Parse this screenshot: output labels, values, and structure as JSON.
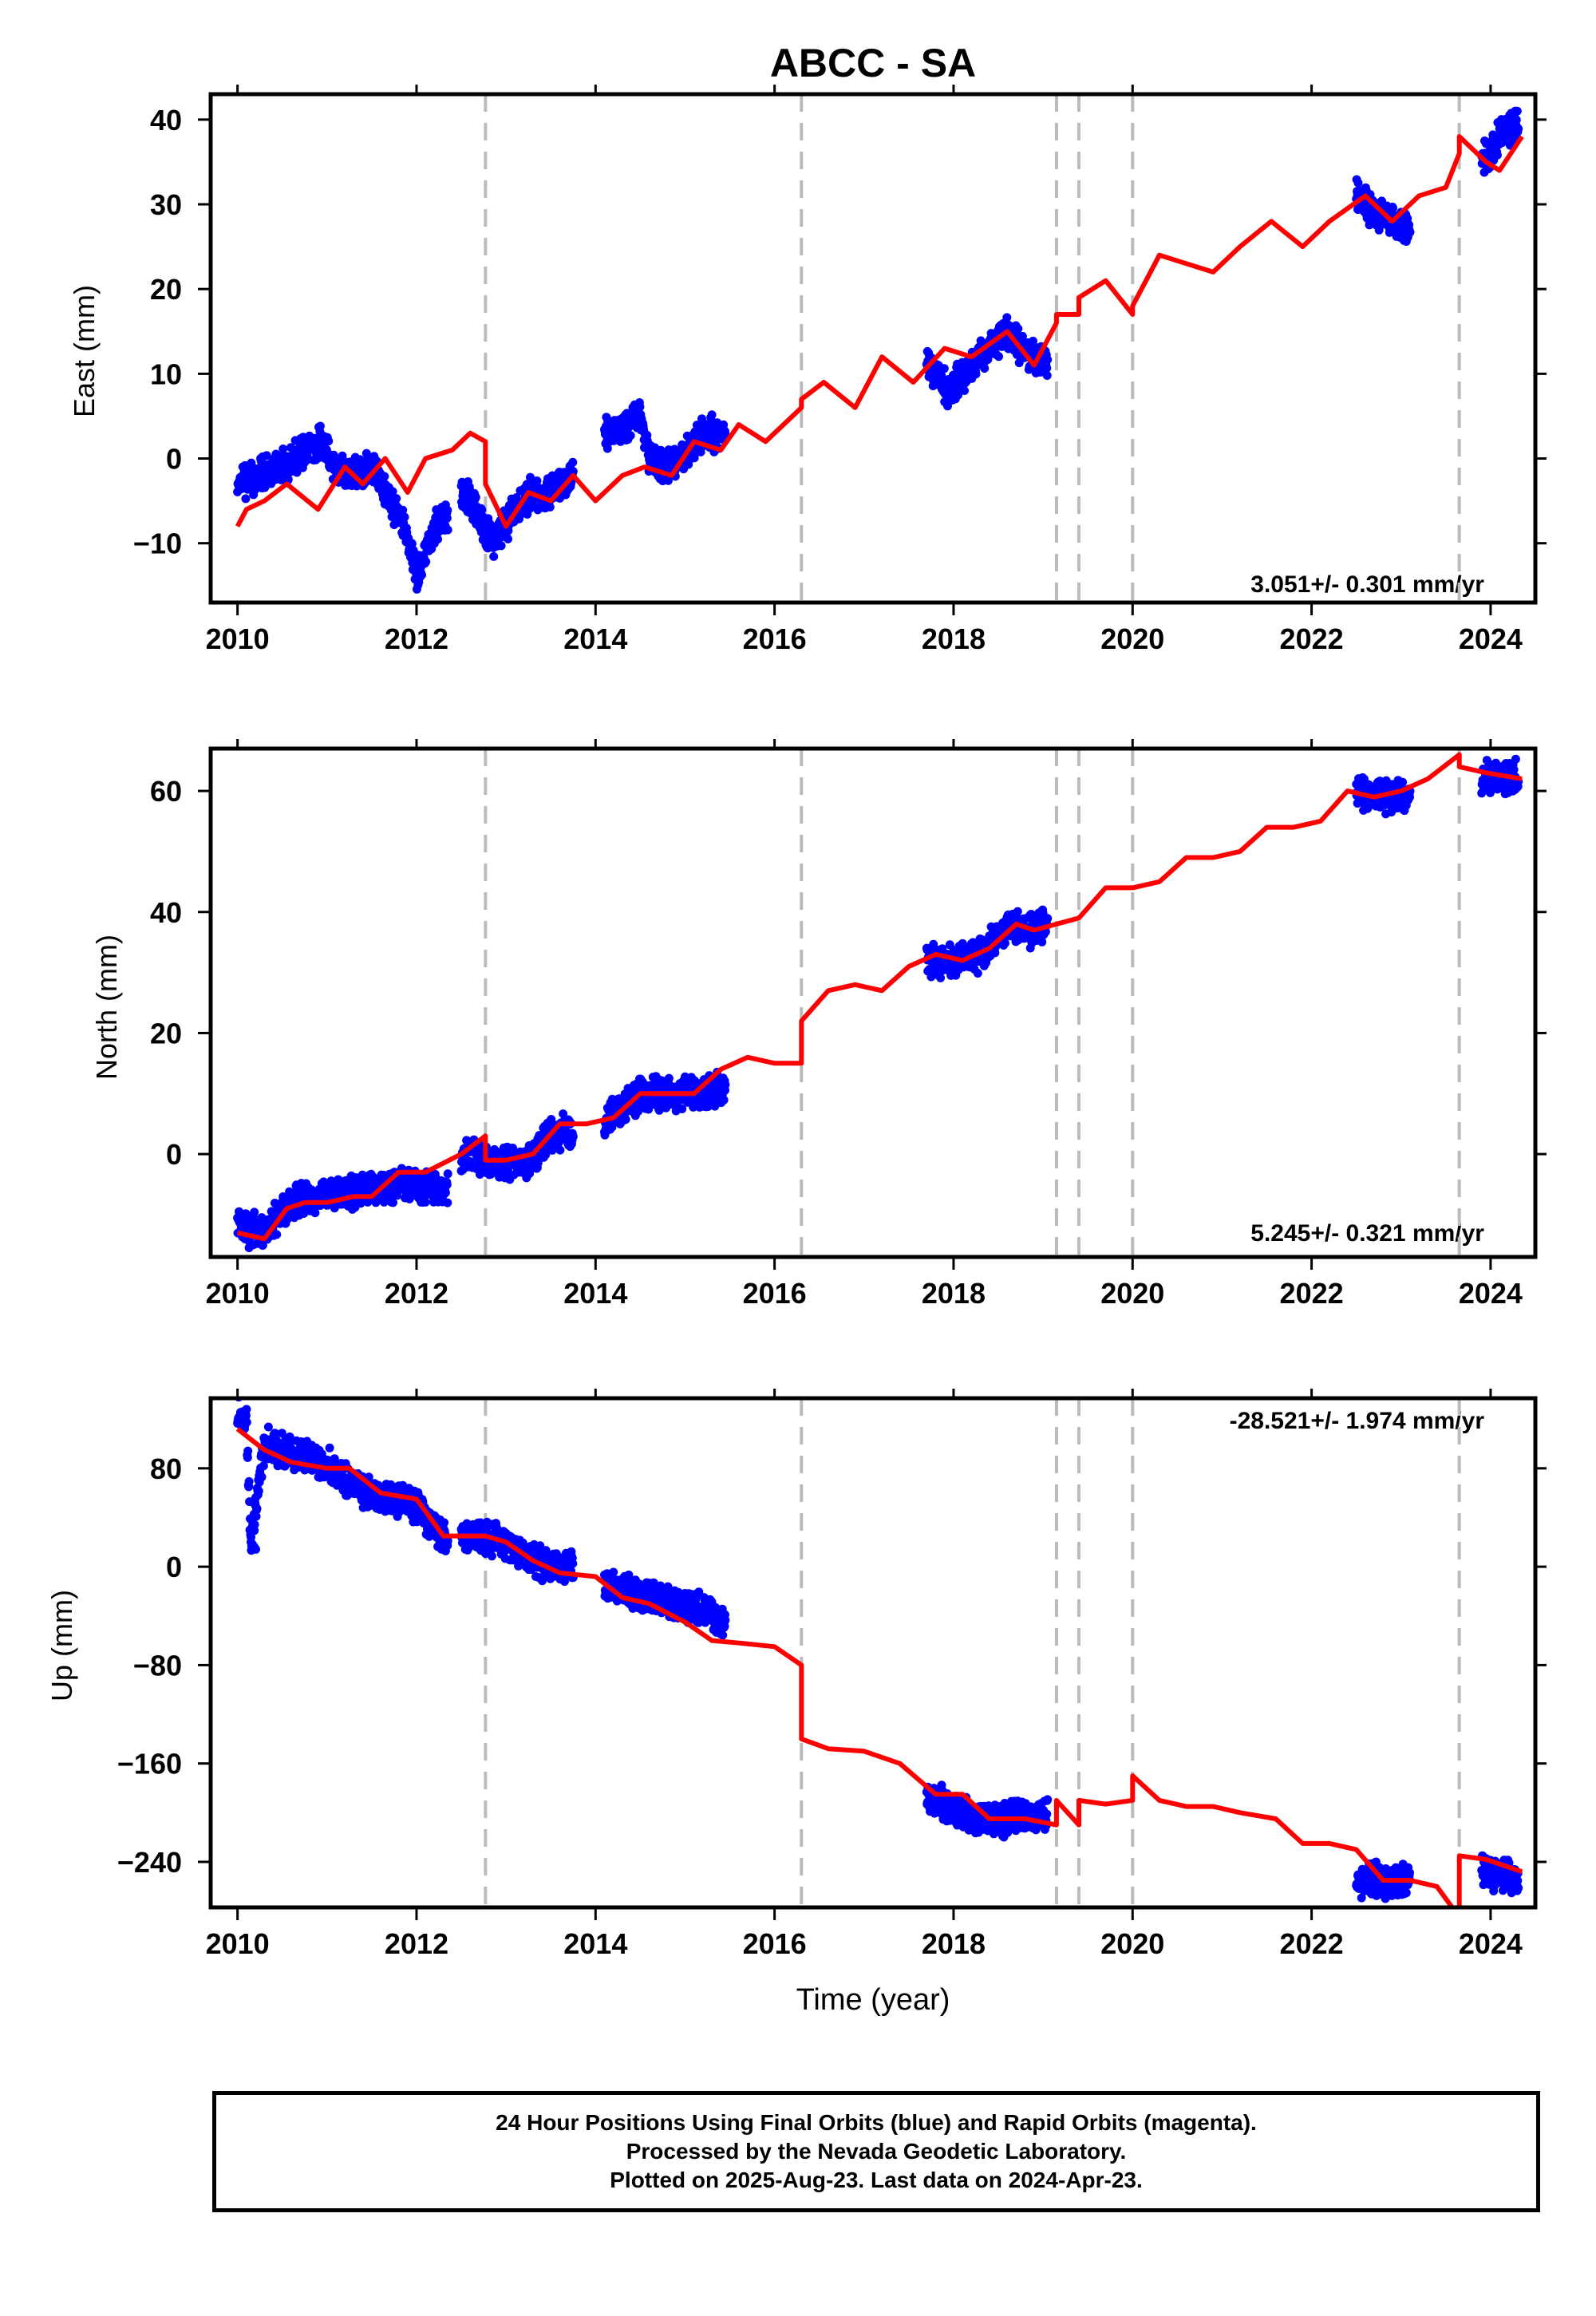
{
  "title": "ABCC - SA",
  "colors": {
    "data_points": "#0000ff",
    "model_line": "#ff0000",
    "event_lines": "#bbbbbb",
    "frame": "#000000"
  },
  "x_axis": {
    "label": "Time (year)",
    "range": [
      2009.7,
      2024.5
    ],
    "ticks": [
      2010,
      2012,
      2014,
      2016,
      2018,
      2020,
      2022,
      2024
    ],
    "tick_labels": [
      "2010",
      "2012",
      "2014",
      "2016",
      "2018",
      "2020",
      "2022",
      "2024"
    ]
  },
  "event_lines": [
    2012.77,
    2016.3,
    2019.15,
    2019.4,
    2020.0,
    2023.65
  ],
  "data_segments": [
    [
      2010.0,
      2012.35
    ],
    [
      2012.5,
      2013.75
    ],
    [
      2014.1,
      2015.45
    ],
    [
      2017.7,
      2019.05
    ],
    [
      2022.5,
      2023.1
    ],
    [
      2023.9,
      2024.31
    ]
  ],
  "chart_data": [
    {
      "type": "scatter",
      "ylabel": "East (mm)",
      "ylim": [
        -17,
        43
      ],
      "yticks": [
        -10,
        0,
        10,
        20,
        30,
        40
      ],
      "ytick_labels": [
        "−10",
        "0",
        "10",
        "20",
        "30",
        "40"
      ],
      "rate_label": "3.051+/- 0.301 mm/yr",
      "rate_position": "bottom-right",
      "series": [
        {
          "role": "daily_positions",
          "x": [
            2010.0,
            2010.5,
            2010.9,
            2011.2,
            2011.5,
            2011.7,
            2011.9,
            2012.0,
            2012.25,
            2012.55,
            2012.85,
            2013.05,
            2013.3,
            2013.5,
            2013.75,
            2014.1,
            2014.5,
            2014.6,
            2014.85,
            2015.2,
            2015.45,
            2017.7,
            2017.95,
            2018.3,
            2018.6,
            2018.85,
            2019.05,
            2022.5,
            2022.7,
            2022.9,
            2023.1,
            2023.9,
            2024.1,
            2024.31
          ],
          "y": [
            -3,
            -1,
            2,
            -2,
            -1,
            -5,
            -9,
            -14,
            -7,
            -4,
            -10,
            -7,
            -4,
            -4,
            -2,
            3,
            5,
            0,
            -1,
            3,
            3,
            11,
            8,
            12,
            15,
            12,
            11,
            31,
            29,
            28,
            27,
            35,
            38,
            40
          ]
        },
        {
          "role": "model",
          "x": [
            2010.0,
            2010.1,
            2010.3,
            2010.55,
            2010.9,
            2011.2,
            2011.4,
            2011.65,
            2011.9,
            2012.1,
            2012.4,
            2012.6,
            2012.77,
            2012.77,
            2013.0,
            2013.25,
            2013.5,
            2013.75,
            2014.0,
            2014.3,
            2014.55,
            2014.85,
            2015.1,
            2015.4,
            2015.6,
            2015.9,
            2016.3,
            2016.3,
            2016.55,
            2016.9,
            2017.2,
            2017.55,
            2017.9,
            2018.2,
            2018.6,
            2018.9,
            2019.15,
            2019.15,
            2019.4,
            2019.4,
            2019.7,
            2020.0,
            2020.0,
            2020.3,
            2020.6,
            2020.9,
            2021.2,
            2021.55,
            2021.9,
            2022.2,
            2022.6,
            2022.9,
            2023.2,
            2023.5,
            2023.65,
            2023.65,
            2023.95,
            2024.1,
            2024.35
          ],
          "y": [
            -8,
            -6,
            -5,
            -3,
            -6,
            -1,
            -3,
            0,
            -4,
            0,
            1,
            3,
            2,
            -3,
            -8,
            -4,
            -5,
            -2,
            -5,
            -2,
            -1,
            -2,
            2,
            1,
            4,
            2,
            6,
            7,
            9,
            6,
            12,
            9,
            13,
            12,
            15,
            11,
            16,
            17,
            17,
            19,
            21,
            17,
            18,
            24,
            23,
            22,
            25,
            28,
            25,
            28,
            31,
            28,
            31,
            32,
            36,
            38,
            35,
            34,
            38
          ]
        }
      ]
    },
    {
      "type": "scatter",
      "ylabel": "North (mm)",
      "ylim": [
        -17,
        67
      ],
      "yticks": [
        0,
        20,
        40,
        60
      ],
      "ytick_labels": [
        "0",
        "20",
        "40",
        "60"
      ],
      "rate_label": "5.245+/- 0.321 mm/yr",
      "rate_position": "bottom-right",
      "series": [
        {
          "role": "daily_positions",
          "x": [
            2010.0,
            2010.3,
            2010.6,
            2011.0,
            2011.4,
            2011.8,
            2012.2,
            2012.55,
            2012.85,
            2013.2,
            2013.5,
            2013.75,
            2014.1,
            2014.5,
            2014.85,
            2015.2,
            2015.45,
            2017.7,
            2018.0,
            2018.3,
            2018.6,
            2018.85,
            2019.05,
            2022.5,
            2022.8,
            2023.1,
            2023.9,
            2024.1,
            2024.31
          ],
          "y": [
            -12,
            -13,
            -8,
            -7,
            -6,
            -5,
            -6,
            0,
            -1,
            -2,
            3,
            4,
            5,
            10,
            10,
            10,
            11,
            32,
            32,
            33,
            38,
            37,
            38,
            60,
            59,
            59,
            62,
            62,
            63
          ]
        },
        {
          "role": "model",
          "x": [
            2010.0,
            2010.3,
            2010.55,
            2010.75,
            2011.0,
            2011.3,
            2011.5,
            2011.8,
            2012.1,
            2012.5,
            2012.77,
            2012.77,
            2013.0,
            2013.3,
            2013.6,
            2013.9,
            2014.2,
            2014.5,
            2014.8,
            2015.1,
            2015.4,
            2015.7,
            2016.0,
            2016.3,
            2016.3,
            2016.6,
            2016.9,
            2017.2,
            2017.5,
            2017.8,
            2018.1,
            2018.4,
            2018.7,
            2018.9,
            2019.15,
            2019.15,
            2019.4,
            2019.7,
            2020.0,
            2020.3,
            2020.6,
            2020.9,
            2021.2,
            2021.5,
            2021.8,
            2022.1,
            2022.4,
            2022.7,
            2023.0,
            2023.3,
            2023.65,
            2023.65,
            2023.95,
            2024.35
          ],
          "y": [
            -13,
            -14,
            -9,
            -8,
            -8,
            -7,
            -7,
            -3,
            -3,
            0,
            3,
            -1,
            -1,
            0,
            5,
            5,
            6,
            10,
            10,
            10,
            14,
            16,
            15,
            15,
            22,
            27,
            28,
            27,
            31,
            33,
            32,
            34,
            38,
            37,
            38,
            38,
            39,
            44,
            44,
            45,
            49,
            49,
            50,
            54,
            54,
            55,
            60,
            59,
            60,
            62,
            66,
            64,
            63,
            62
          ]
        }
      ]
    },
    {
      "type": "scatter",
      "ylabel": "Up (mm)",
      "ylim": [
        -277,
        137
      ],
      "yticks": [
        -240,
        -160,
        -80,
        0,
        80
      ],
      "ytick_labels": [
        "−240",
        "−160",
        "−80",
        "0",
        "80"
      ],
      "rate_label": "-28.521+/- 1.974 mm/yr",
      "rate_position": "top-right",
      "series": [
        {
          "role": "daily_positions",
          "x": [
            2010.0,
            2010.1,
            2010.3,
            2010.6,
            2011.0,
            2011.3,
            2011.7,
            2012.0,
            2012.3,
            2012.6,
            2013.0,
            2013.3,
            2013.6,
            2014.2,
            2014.5,
            2014.9,
            2015.2,
            2015.45,
            2010.15,
            2017.7,
            2018.0,
            2018.3,
            2018.6,
            2019.05,
            2022.5,
            2022.8,
            2023.1,
            2023.9,
            2024.1,
            2024.31
          ],
          "y": [
            125,
            118,
            100,
            90,
            83,
            65,
            55,
            50,
            25,
            25,
            20,
            5,
            0,
            -15,
            -25,
            -30,
            -35,
            -45,
            20,
            -190,
            -195,
            -205,
            -205,
            -200,
            -255,
            -255,
            -255,
            -248,
            -250,
            -255
          ]
        },
        {
          "role": "model",
          "x": [
            2010.0,
            2010.3,
            2010.6,
            2011.0,
            2011.25,
            2011.6,
            2012.0,
            2012.3,
            2012.77,
            2013.0,
            2013.3,
            2013.6,
            2014.0,
            2014.3,
            2014.6,
            2015.0,
            2015.3,
            2015.6,
            2016.0,
            2016.3,
            2016.3,
            2016.6,
            2017.0,
            2017.4,
            2017.8,
            2018.1,
            2018.4,
            2018.8,
            2019.15,
            2019.15,
            2019.4,
            2019.4,
            2019.7,
            2020.0,
            2020.0,
            2020.3,
            2020.6,
            2020.9,
            2021.2,
            2021.6,
            2021.9,
            2022.2,
            2022.5,
            2022.8,
            2023.1,
            2023.4,
            2023.65,
            2023.65,
            2023.95,
            2024.35
          ],
          "y": [
            112,
            95,
            85,
            80,
            80,
            60,
            55,
            25,
            25,
            20,
            5,
            -5,
            -8,
            -25,
            -30,
            -45,
            -60,
            -62,
            -65,
            -80,
            -140,
            -148,
            -150,
            -160,
            -185,
            -185,
            -205,
            -205,
            -210,
            -190,
            -210,
            -190,
            -193,
            -190,
            -170,
            -190,
            -195,
            -195,
            -200,
            -205,
            -225,
            -225,
            -230,
            -255,
            -255,
            -260,
            -285,
            -235,
            -238,
            -248
          ]
        }
      ]
    }
  ],
  "footer": {
    "line1": "24 Hour Positions Using Final Orbits (blue) and Rapid Orbits (magenta).",
    "line2": "Processed by the Nevada Geodetic Laboratory.",
    "line3": "Plotted on 2025-Aug-23. Last data on 2024-Apr-23."
  }
}
